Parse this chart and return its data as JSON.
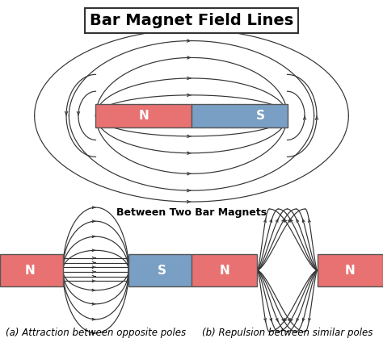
{
  "title": "Bar Magnet Field Lines",
  "subtitle": "Between Two Bar Magnets",
  "label_a": "(a) Attraction between opposite poles",
  "label_b": "(b) Repulsion between similar poles",
  "north_color": "#E87272",
  "south_color": "#7A9FC4",
  "bg_color": "#FFFFFF",
  "line_color": "#333333",
  "title_fontsize": 14,
  "label_fontsize": 8.5
}
